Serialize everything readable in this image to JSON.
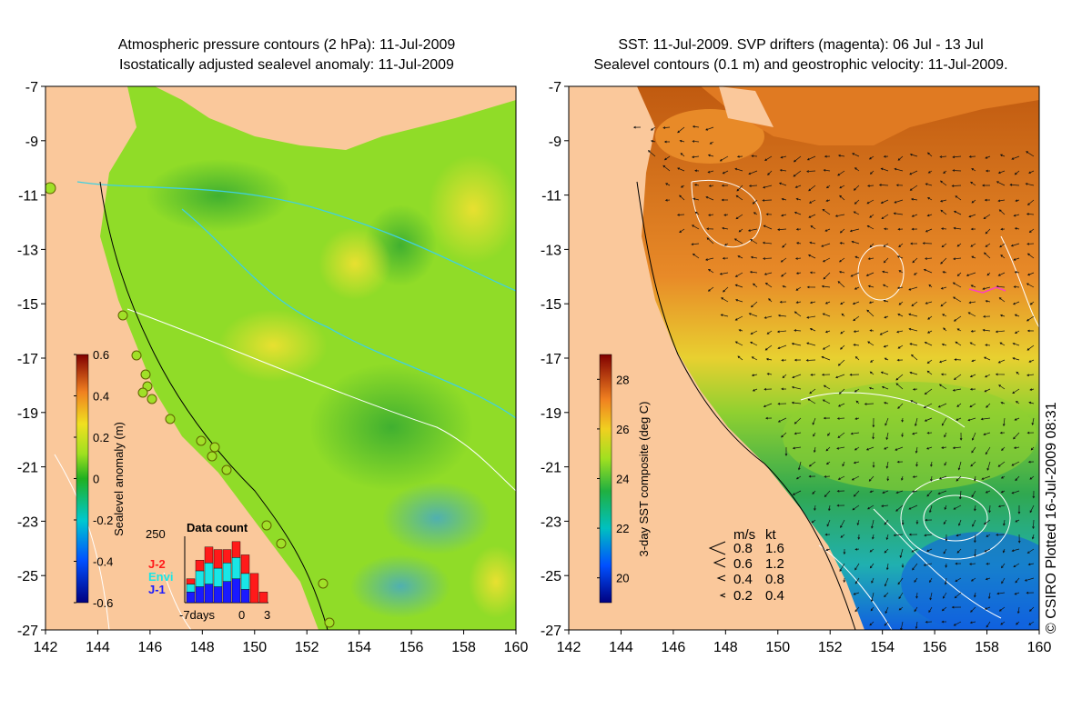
{
  "left_panel": {
    "title_line1": "Atmospheric pressure contours (2 hPa): 11-Jul-2009",
    "title_line2": "Isostatically adjusted sealevel anomaly: 11-Jul-2009",
    "x_ticks": [
      "142",
      "144",
      "146",
      "148",
      "150",
      "152",
      "154",
      "156",
      "158",
      "160"
    ],
    "y_ticks": [
      "-7",
      "-9",
      "-11",
      "-13",
      "-15",
      "-17",
      "-19",
      "-21",
      "-23",
      "-25",
      "-27"
    ],
    "colorbar": {
      "label": "Sealevel anomaly (m)",
      "ticks": [
        "0.6",
        "0.4",
        "0.2",
        "0",
        "-0.2",
        "-0.4",
        "-0.6"
      ],
      "range": [
        -0.6,
        0.6
      ]
    },
    "data_count": {
      "title": "Data count",
      "ymax_label": "250",
      "legend": [
        {
          "name": "J-2",
          "color": "#ff1a1a"
        },
        {
          "name": "Envi",
          "color": "#19e6e6"
        },
        {
          "name": "J-1",
          "color": "#1a1aff"
        }
      ],
      "x_labels": [
        "-7days",
        "0",
        "3"
      ],
      "bars": [
        {
          "j1": 40,
          "envi": 30,
          "j2": 20
        },
        {
          "j1": 60,
          "envi": 60,
          "j2": 40
        },
        {
          "j1": 70,
          "envi": 80,
          "j2": 60
        },
        {
          "j1": 60,
          "envi": 70,
          "j2": 70
        },
        {
          "j1": 80,
          "envi": 70,
          "j2": 50
        },
        {
          "j1": 90,
          "envi": 80,
          "j2": 60
        },
        {
          "j1": 50,
          "envi": 60,
          "j2": 70
        },
        {
          "j1": 0,
          "envi": 0,
          "j2": 110
        },
        {
          "j1": 0,
          "envi": 0,
          "j2": 40
        }
      ]
    }
  },
  "right_panel": {
    "title_line1": "SST: 11-Jul-2009. SVP drifters (magenta): 06 Jul - 13 Jul",
    "title_line2": "Sealevel contours (0.1 m) and geostrophic velocity: 11-Jul-2009.",
    "x_ticks": [
      "142",
      "144",
      "146",
      "148",
      "150",
      "152",
      "154",
      "156",
      "158",
      "160"
    ],
    "y_ticks": [
      "-7",
      "-9",
      "-11",
      "-13",
      "-15",
      "-17",
      "-19",
      "-21",
      "-23",
      "-25",
      "-27"
    ],
    "colorbar": {
      "label": "3-day SST composite (deg C)",
      "ticks": [
        "28",
        "26",
        "24",
        "22",
        "20"
      ],
      "range": [
        19,
        29
      ]
    },
    "velocity_legend": {
      "header_ms": "m/s",
      "header_kt": "kt",
      "rows": [
        {
          "ms": "0.8",
          "kt": "1.6"
        },
        {
          "ms": "0.6",
          "kt": "1.2"
        },
        {
          "ms": "0.4",
          "kt": "0.8"
        },
        {
          "ms": "0.2",
          "kt": "0.4"
        }
      ]
    }
  },
  "credit": "© CSIRO Plotted 16-Jul-2009 08:31",
  "colors": {
    "land": "#fac89b",
    "ocean_green": "#90dc28",
    "sst_warm": "#e07a22"
  }
}
